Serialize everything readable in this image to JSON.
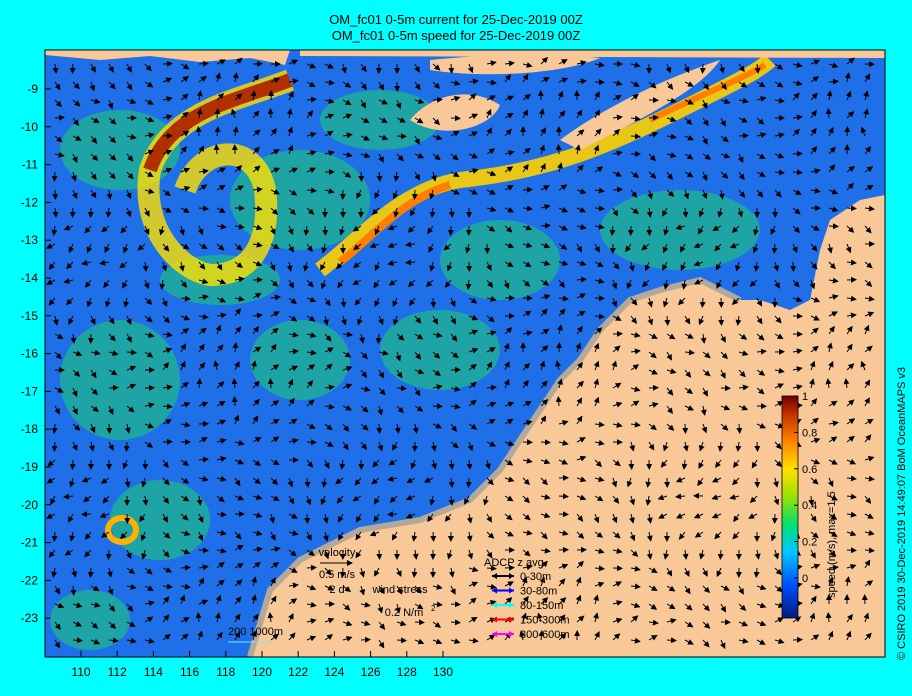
{
  "title_line1": "OM_fc01 0-5m current for 25-Dec-2019 00Z",
  "title_line2": "OM_fc01 0-5m speed for 25-Dec-2019 00Z",
  "credit": "© CSIRO 2019   30-Dec-2019 14:49:07 BoM OceanMAPS v3",
  "x_ticks": [
    "110",
    "112",
    "114",
    "116",
    "118",
    "120",
    "122",
    "124",
    "126",
    "128",
    "130"
  ],
  "y_ticks": [
    "-9",
    "-10",
    "-11",
    "-12",
    "-13",
    "-14",
    "-15",
    "-16",
    "-17",
    "-18",
    "-19",
    "-20",
    "-21",
    "-22",
    "-23"
  ],
  "colorbar": {
    "label": "speed (m/s),  max=1.5",
    "ticks": [
      "1",
      "0.8",
      "0.6",
      "0.4",
      "0.2",
      "0"
    ],
    "colors": [
      "#001a80",
      "#0050ff",
      "#00c8ff",
      "#00e070",
      "#a0e000",
      "#ffe000",
      "#ff8000",
      "#c03000",
      "#700000"
    ]
  },
  "legend": {
    "velocity_title": "velocity",
    "velocity_scale": "0.5 m/s",
    "velocity_time": "2 d",
    "wind_title": "wind stress",
    "wind_scale": "0.2 N/m",
    "wind_superscript": "2",
    "contours": "200   1000m",
    "adcp_title": "ADCP z avg",
    "adcp": [
      {
        "label": "0-30m",
        "color": "#000000"
      },
      {
        "label": "30-80m",
        "color": "#0000ff"
      },
      {
        "label": "80-150m",
        "color": "#00ffff"
      },
      {
        "label": "150-300m",
        "color": "#ff0000"
      },
      {
        "label": "300-600m",
        "color": "#ff00ff"
      }
    ]
  },
  "colors": {
    "land": "#f8c898",
    "ocean": "#1e6fe8",
    "shelf": "#b4a898"
  }
}
